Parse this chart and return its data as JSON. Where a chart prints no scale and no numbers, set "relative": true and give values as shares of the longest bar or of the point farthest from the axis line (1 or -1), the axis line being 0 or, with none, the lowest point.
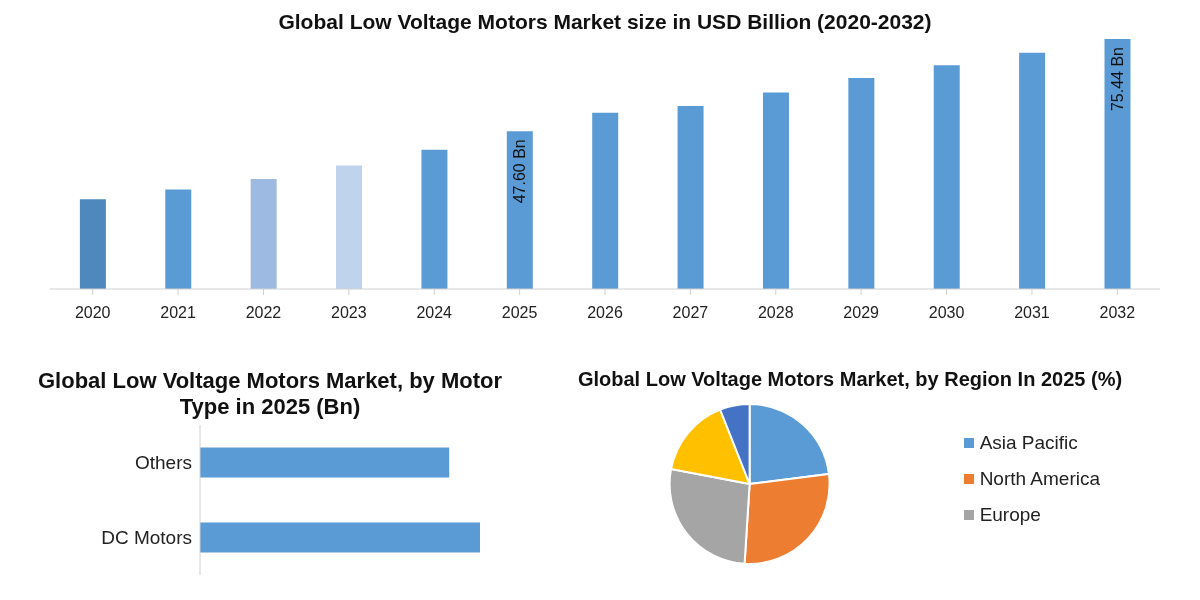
{
  "chart_data": [
    {
      "type": "bar",
      "title": "Global Low Voltage Motors Market size in USD Billion (2020-2032)",
      "categories": [
        "2020",
        "2021",
        "2022",
        "2023",
        "2024",
        "2025",
        "2026",
        "2027",
        "2028",
        "2029",
        "2030",
        "2031",
        "2032"
      ],
      "values": [
        27.1,
        30.0,
        33.2,
        37.3,
        42.0,
        47.6,
        53.2,
        55.2,
        59.3,
        63.7,
        67.5,
        71.3,
        75.44
      ],
      "colors": [
        "#4f88bd",
        "#5b9bd5",
        "#9dbbe1",
        "#c0d3ec",
        "#5b9bd5",
        "#5b9bd5",
        "#5b9bd5",
        "#5b9bd5",
        "#5b9bd5",
        "#5b9bd5",
        "#5b9bd5",
        "#5b9bd5",
        "#5b9bd5"
      ],
      "value_labels": [
        null,
        null,
        null,
        null,
        null,
        "47.60 Bn",
        null,
        null,
        null,
        null,
        null,
        null,
        "75.44 Bn"
      ]
    },
    {
      "type": "bar",
      "orientation": "horizontal",
      "relative": true,
      "title": "Global Low Voltage Motors Market, by Motor Type in 2025 (Bn)",
      "categories": [
        "Others",
        "DC Motors"
      ],
      "values": [
        0.89,
        1
      ],
      "color": "#5b9bd5"
    },
    {
      "type": "pie",
      "title": "Global Low Voltage Motors Market, by Region In 2025 (%)",
      "categories": [
        "Asia Pacific",
        "North America",
        "Europe",
        null,
        null
      ],
      "values": [
        23,
        28,
        27,
        16,
        6
      ],
      "colors": [
        "#5b9bd5",
        "#ed7d31",
        "#a5a5a5",
        "#ffc000",
        "#4472c4"
      ],
      "legend": "right"
    }
  ]
}
